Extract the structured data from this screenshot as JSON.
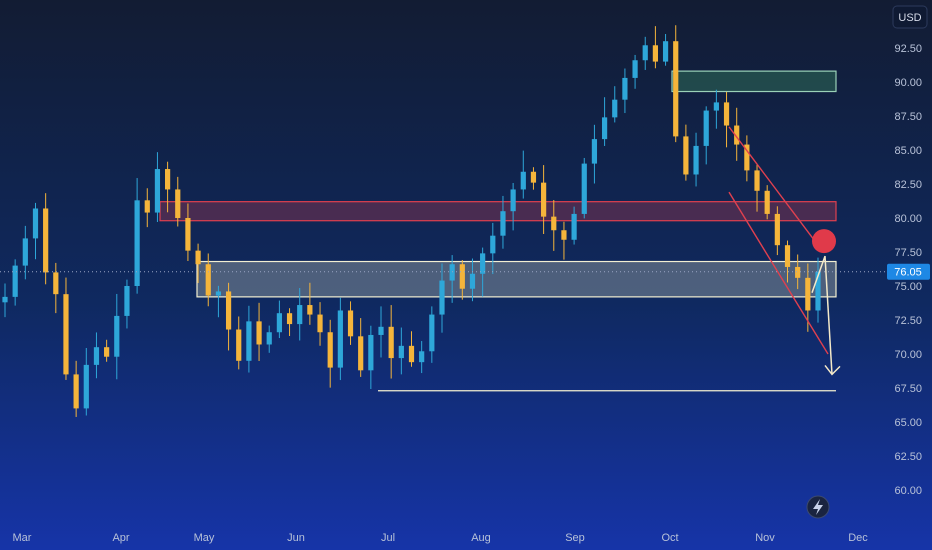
{
  "currency": "USD",
  "current_price_label": "76.05",
  "colors": {
    "bull": "#2ea7d9",
    "bear": "#f5b53b",
    "red_zone": "#e0404f",
    "green_zone": "#2f6b55",
    "white_zone": "#f2efd2",
    "arrow": "#f4e9c8"
  },
  "icons": {
    "lightning": "lightning-icon"
  },
  "chart_data": {
    "type": "candlestick",
    "title": "",
    "xlabel": "",
    "ylabel": "",
    "ylim": [
      58.3,
      94.7
    ],
    "y_ticks": [
      "92.50",
      "90.00",
      "87.50",
      "85.00",
      "82.50",
      "80.00",
      "77.50",
      "75.00",
      "72.50",
      "70.00",
      "67.50",
      "65.00",
      "62.50",
      "60.00"
    ],
    "x_ticks": [
      "Mar",
      "Apr",
      "May",
      "Jun",
      "Jul",
      "Aug",
      "Sep",
      "Oct",
      "Nov",
      "Dec"
    ],
    "current_price": 76.05,
    "series": [
      {
        "points": [
          {
            "x": "Mar",
            "value": 74.2
          },
          {
            "x": "Mar",
            "value": 76.5
          },
          {
            "x": "Mar",
            "value": 78.5
          },
          {
            "x": "Mar",
            "value": 80.7
          },
          {
            "x": "Mar",
            "value": 76.0
          },
          {
            "x": "Mar",
            "value": 74.4
          },
          {
            "x": "Mar",
            "value": 68.5
          },
          {
            "x": "Mar",
            "value": 66.0
          },
          {
            "x": "Mar",
            "value": 69.2
          },
          {
            "x": "Mar",
            "value": 70.5
          },
          {
            "x": "Mar",
            "value": 69.8
          },
          {
            "x": "Mar",
            "value": 72.8
          },
          {
            "x": "Mar",
            "value": 75.0
          },
          {
            "x": "Apr",
            "value": 81.3
          },
          {
            "x": "Apr",
            "value": 80.4
          },
          {
            "x": "Apr",
            "value": 83.6
          },
          {
            "x": "Apr",
            "value": 82.1
          },
          {
            "x": "Apr",
            "value": 80.0
          },
          {
            "x": "Apr",
            "value": 77.6
          },
          {
            "x": "Apr",
            "value": 76.6
          },
          {
            "x": "Apr",
            "value": 74.3
          },
          {
            "x": "May",
            "value": 74.6
          },
          {
            "x": "May",
            "value": 71.8
          },
          {
            "x": "May",
            "value": 69.5
          },
          {
            "x": "May",
            "value": 72.4
          },
          {
            "x": "May",
            "value": 70.7
          },
          {
            "x": "May",
            "value": 71.6
          },
          {
            "x": "May",
            "value": 73.0
          },
          {
            "x": "May",
            "value": 72.2
          },
          {
            "x": "May",
            "value": 73.6
          },
          {
            "x": "May",
            "value": 72.9
          },
          {
            "x": "Jun",
            "value": 71.6
          },
          {
            "x": "Jun",
            "value": 69.0
          },
          {
            "x": "Jun",
            "value": 73.2
          },
          {
            "x": "Jun",
            "value": 71.3
          },
          {
            "x": "Jun",
            "value": 68.8
          },
          {
            "x": "Jun",
            "value": 71.4
          },
          {
            "x": "Jun",
            "value": 72.0
          },
          {
            "x": "Jun",
            "value": 69.7
          },
          {
            "x": "Jun",
            "value": 70.6
          },
          {
            "x": "Jun",
            "value": 69.4
          },
          {
            "x": "Jul",
            "value": 70.2
          },
          {
            "x": "Jul",
            "value": 72.9
          },
          {
            "x": "Jul",
            "value": 75.4
          },
          {
            "x": "Jul",
            "value": 76.6
          },
          {
            "x": "Jul",
            "value": 74.8
          },
          {
            "x": "Jul",
            "value": 75.9
          },
          {
            "x": "Jul",
            "value": 77.4
          },
          {
            "x": "Jul",
            "value": 78.7
          },
          {
            "x": "Jul",
            "value": 80.5
          },
          {
            "x": "Aug",
            "value": 82.1
          },
          {
            "x": "Aug",
            "value": 83.4
          },
          {
            "x": "Aug",
            "value": 82.6
          },
          {
            "x": "Aug",
            "value": 80.1
          },
          {
            "x": "Aug",
            "value": 79.1
          },
          {
            "x": "Aug",
            "value": 78.4
          },
          {
            "x": "Aug",
            "value": 80.3
          },
          {
            "x": "Aug",
            "value": 84.0
          },
          {
            "x": "Sep",
            "value": 85.8
          },
          {
            "x": "Sep",
            "value": 87.4
          },
          {
            "x": "Sep",
            "value": 88.7
          },
          {
            "x": "Sep",
            "value": 90.3
          },
          {
            "x": "Sep",
            "value": 91.6
          },
          {
            "x": "Sep",
            "value": 92.7
          },
          {
            "x": "Sep",
            "value": 91.5
          },
          {
            "x": "Sep",
            "value": 93.0
          },
          {
            "x": "Oct",
            "value": 86.0
          },
          {
            "x": "Oct",
            "value": 83.2
          },
          {
            "x": "Oct",
            "value": 85.3
          },
          {
            "x": "Oct",
            "value": 87.9
          },
          {
            "x": "Oct",
            "value": 88.5
          },
          {
            "x": "Oct",
            "value": 86.8
          },
          {
            "x": "Oct",
            "value": 85.4
          },
          {
            "x": "Oct",
            "value": 83.5
          },
          {
            "x": "Oct",
            "value": 82.0
          },
          {
            "x": "Nov",
            "value": 80.3
          },
          {
            "x": "Nov",
            "value": 78.0
          },
          {
            "x": "Nov",
            "value": 76.4
          },
          {
            "x": "Nov",
            "value": 75.6
          },
          {
            "x": "Nov",
            "value": 73.2
          },
          {
            "x": "Nov",
            "value": 76.05
          }
        ]
      }
    ],
    "zones": [
      {
        "name": "green-zone",
        "y_low": 89.3,
        "y_high": 90.8
      },
      {
        "name": "red-zone",
        "y_low": 79.8,
        "y_high": 81.2
      },
      {
        "name": "white-zone",
        "y_low": 74.2,
        "y_high": 76.8
      }
    ],
    "support_line": 67.3,
    "channel": {
      "upper": [
        86.7,
        78.0
      ],
      "lower": [
        81.9,
        70.0
      ]
    },
    "projection_target": 68.5
  }
}
